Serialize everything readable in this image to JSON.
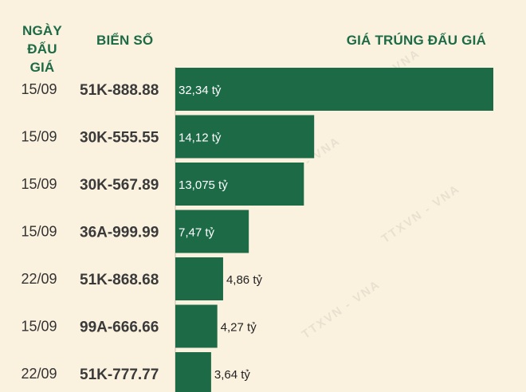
{
  "header": {
    "date_line1": "NGÀY",
    "date_line2": "ĐẤU GIÁ",
    "plate": "BIỂN SỐ",
    "price": "GIÁ TRÚNG ĐẤU GIÁ"
  },
  "colors": {
    "background": "#fbf1df",
    "bar": "#1c6b46",
    "header_text": "#1c6b46",
    "date_text": "#333333",
    "plate_text": "#3a3a3a",
    "label_inside": "#ffffff",
    "label_outside": "#222222"
  },
  "watermark": "TTXVN - VNA",
  "chart_data": {
    "type": "bar",
    "orientation": "horizontal",
    "title": "",
    "xlabel": "GIÁ TRÚNG ĐẤU GIÁ",
    "ylabel": "BIỂN SỐ",
    "unit": "tỷ",
    "categories": [
      "51K-888.88",
      "30K-555.55",
      "30K-567.89",
      "36A-999.99",
      "51K-868.68",
      "99A-666.66",
      "51K-777.77"
    ],
    "dates": [
      "15/09",
      "15/09",
      "15/09",
      "15/09",
      "22/09",
      "15/09",
      "22/09"
    ],
    "values": [
      32.34,
      14.12,
      13.075,
      7.47,
      4.86,
      4.27,
      3.64
    ],
    "value_labels": [
      "32,34 tỷ",
      "14,12 tỷ",
      "13,075 tỷ",
      "7,47 tỷ",
      "4,86 tỷ",
      "4,27 tỷ",
      "3,64 tỷ"
    ],
    "xlim": [
      0,
      32.34
    ]
  }
}
